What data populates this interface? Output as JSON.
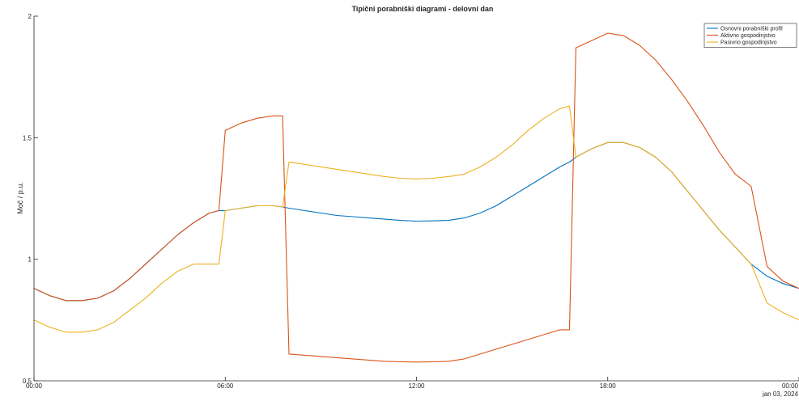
{
  "chart_data": {
    "type": "line",
    "title": "Tipični porabniški diagrami - delovni dan",
    "xlabel": "",
    "ylabel": "Moč / p.u.",
    "xlim": [
      0,
      24
    ],
    "ylim": [
      0.5,
      2
    ],
    "grid": false,
    "legend_position": "top-right",
    "x_ticks": [
      0,
      6,
      12,
      18,
      24
    ],
    "x_tick_labels": [
      "00:00",
      "06:00",
      "12:00",
      "18:00",
      "00:00"
    ],
    "x_date_label": "jan 03, 2024",
    "y_ticks": [
      0.5,
      1,
      1.5,
      2
    ],
    "y_tick_labels": [
      "0.5",
      "1",
      "1.5",
      "2"
    ],
    "x_unit": "hours",
    "x": [
      0,
      0.5,
      1,
      1.5,
      2,
      2.5,
      3,
      3.5,
      4,
      4.5,
      5,
      5.5,
      5.8,
      6,
      6.5,
      7,
      7.5,
      7.8,
      8,
      8.5,
      9,
      9.5,
      10,
      10.5,
      11,
      11.5,
      12,
      12.5,
      13,
      13.5,
      14,
      14.5,
      15,
      15.5,
      16,
      16.5,
      16.8,
      17,
      17.5,
      18,
      18.5,
      19,
      19.5,
      20,
      20.5,
      21,
      21.5,
      22,
      22.5,
      23,
      23.5,
      24
    ],
    "series": [
      {
        "name": "Osnovni porabniški profil",
        "color": "#0072BD",
        "values": [
          0.88,
          0.85,
          0.83,
          0.83,
          0.84,
          0.87,
          0.92,
          0.98,
          1.04,
          1.1,
          1.15,
          1.19,
          1.2,
          1.2,
          1.21,
          1.22,
          1.22,
          1.215,
          1.21,
          1.2,
          1.19,
          1.18,
          1.175,
          1.17,
          1.165,
          1.16,
          1.157,
          1.158,
          1.16,
          1.17,
          1.19,
          1.22,
          1.26,
          1.3,
          1.34,
          1.38,
          1.4,
          1.42,
          1.455,
          1.48,
          1.48,
          1.46,
          1.42,
          1.36,
          1.28,
          1.2,
          1.12,
          1.05,
          0.98,
          0.93,
          0.9,
          0.88
        ]
      },
      {
        "name": "Aktivno gospodinjstvo",
        "color": "#D95319",
        "values": [
          0.88,
          0.85,
          0.83,
          0.83,
          0.84,
          0.87,
          0.92,
          0.98,
          1.04,
          1.1,
          1.15,
          1.19,
          1.2,
          1.53,
          1.56,
          1.58,
          1.59,
          1.59,
          0.61,
          0.605,
          0.6,
          0.595,
          0.59,
          0.585,
          0.58,
          0.578,
          0.577,
          0.578,
          0.58,
          0.59,
          0.61,
          0.63,
          0.65,
          0.67,
          0.69,
          0.71,
          0.71,
          1.87,
          1.9,
          1.93,
          1.92,
          1.88,
          1.82,
          1.74,
          1.65,
          1.55,
          1.44,
          1.35,
          1.3,
          0.97,
          0.91,
          0.88
        ]
      },
      {
        "name": "Pasivno gospodinjstvo",
        "color": "#EDB120",
        "values": [
          0.75,
          0.72,
          0.7,
          0.7,
          0.71,
          0.74,
          0.79,
          0.84,
          0.9,
          0.95,
          0.98,
          0.98,
          0.98,
          1.2,
          1.21,
          1.22,
          1.22,
          1.215,
          1.4,
          1.39,
          1.38,
          1.37,
          1.36,
          1.35,
          1.34,
          1.333,
          1.33,
          1.333,
          1.34,
          1.35,
          1.38,
          1.42,
          1.47,
          1.53,
          1.58,
          1.62,
          1.63,
          1.42,
          1.455,
          1.48,
          1.48,
          1.46,
          1.42,
          1.36,
          1.28,
          1.2,
          1.12,
          1.05,
          0.98,
          0.82,
          0.78,
          0.75
        ]
      }
    ]
  }
}
